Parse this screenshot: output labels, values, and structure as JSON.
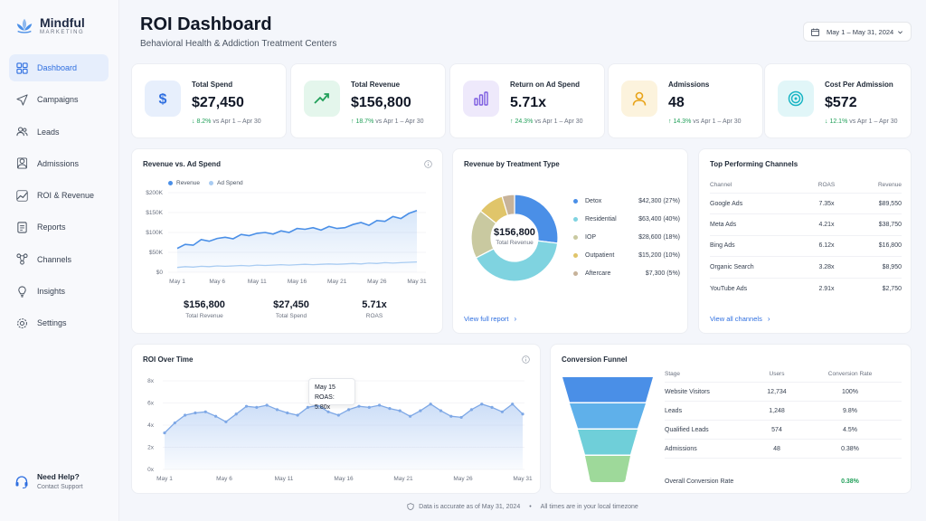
{
  "brand": {
    "name": "Mindful",
    "sub": "MARKETING"
  },
  "nav": [
    {
      "label": "Dashboard",
      "icon": "grid-icon",
      "active": true
    },
    {
      "label": "Campaigns",
      "icon": "send-icon"
    },
    {
      "label": "Leads",
      "icon": "users-icon"
    },
    {
      "label": "Admissions",
      "icon": "person-icon"
    },
    {
      "label": "ROI & Revenue",
      "icon": "trend-icon"
    },
    {
      "label": "Reports",
      "icon": "report-icon"
    },
    {
      "label": "Channels",
      "icon": "channels-icon"
    },
    {
      "label": "Insights",
      "icon": "bulb-icon"
    },
    {
      "label": "Settings",
      "icon": "gear-icon"
    }
  ],
  "help": {
    "title": "Need Help?",
    "sub": "Contact Support"
  },
  "header": {
    "title": "ROI Dashboard",
    "subtitle": "Behavioral Health & Addiction Treatment Centers",
    "date_range": "May 1 – May 31, 2024"
  },
  "kpis": [
    {
      "label": "Total Spend",
      "value": "$27,450",
      "delta": "8.2%",
      "compare": "vs Apr 1 – Apr 30",
      "icon": "dollar-icon",
      "color": "#2f6fe0"
    },
    {
      "label": "Total Revenue",
      "value": "$156,800",
      "delta": "18.7%",
      "compare": "vs Apr 1 – Apr 30",
      "icon": "trend-up-icon",
      "color": "#22a05a"
    },
    {
      "label": "Return on Ad Spend",
      "value": "5.71x",
      "delta": "24.3%",
      "compare": "vs Apr 1 – Apr 30",
      "icon": "bar-chart-icon",
      "color": "#7c5ce0"
    },
    {
      "label": "Admissions",
      "value": "48",
      "delta": "14.3%",
      "compare": "vs Apr 1 – Apr 30",
      "icon": "person-icon",
      "color": "#e8a317"
    },
    {
      "label": "Cost Per Admission",
      "value": "$572",
      "delta": "12.1%",
      "compare": "vs Apr 1 – Apr 30",
      "icon": "target-icon",
      "color": "#19b5c4"
    }
  ],
  "revenue_chart": {
    "title": "Revenue vs. Ad Spend",
    "legend": [
      "Revenue",
      "Ad Spend"
    ],
    "summary": [
      {
        "value": "$156,800",
        "label": "Total Revenue"
      },
      {
        "value": "$27,450",
        "label": "Total Spend"
      },
      {
        "value": "5.71x",
        "label": "ROAS"
      }
    ]
  },
  "treatment": {
    "title": "Revenue by Treatment Type",
    "center_value": "$156,800",
    "center_label": "Total Revenue",
    "link": "View full report"
  },
  "channels": {
    "title": "Top Performing Channels",
    "headers": [
      "Channel",
      "ROAS",
      "Revenue"
    ],
    "rows": [
      [
        "Google Ads",
        "7.35x",
        "$89,550"
      ],
      [
        "Meta Ads",
        "4.21x",
        "$38,750"
      ],
      [
        "Bing Ads",
        "6.12x",
        "$16,800"
      ],
      [
        "Organic Search",
        "3.28x",
        "$8,950"
      ],
      [
        "YouTube Ads",
        "2.91x",
        "$2,750"
      ]
    ],
    "link": "View all channels"
  },
  "roi_chart": {
    "title": "ROI Over Time",
    "tooltip_date": "May 15",
    "tooltip_value": "ROAS: 5.80x"
  },
  "funnel": {
    "title": "Conversion Funnel",
    "headers": [
      "Stage",
      "Users",
      "Conversion Rate"
    ],
    "rows": [
      [
        "Website Visitors",
        "12,734",
        "100%"
      ],
      [
        "Leads",
        "1,248",
        "9.8%"
      ],
      [
        "Qualified Leads",
        "574",
        "4.5%"
      ],
      [
        "Admissions",
        "48",
        "0.38%"
      ]
    ],
    "overall_label": "Overall Conversion Rate",
    "overall_value": "0.38%"
  },
  "footer": {
    "left": "Data is accurate as of May 31, 2024",
    "right": "All times are in your local timezone"
  },
  "chart_data": [
    {
      "type": "line",
      "title": "Revenue vs. Ad Spend",
      "x_ticks": [
        "May 1",
        "May 6",
        "May 11",
        "May 16",
        "May 21",
        "May 26",
        "May 31"
      ],
      "y_ticks": [
        "$0",
        "$50K",
        "$100K",
        "$150K",
        "$200K"
      ],
      "ylim": [
        0,
        200000
      ],
      "series": [
        {
          "name": "Revenue",
          "color": "#4a8fe7",
          "values": [
            60000,
            70000,
            68000,
            82000,
            78000,
            85000,
            88000,
            84000,
            95000,
            92000,
            98000,
            100000,
            96000,
            104000,
            100000,
            110000,
            108000,
            112000,
            106000,
            115000,
            110000,
            112000,
            120000,
            125000,
            118000,
            130000,
            128000,
            140000,
            135000,
            148000,
            155000
          ]
        },
        {
          "name": "Ad Spend",
          "color": "#a9ccf2",
          "values": [
            12000,
            14000,
            13000,
            15000,
            14000,
            16000,
            15000,
            16000,
            17000,
            16000,
            18000,
            17000,
            18000,
            19000,
            18000,
            19000,
            20000,
            19000,
            20000,
            21000,
            20000,
            21000,
            22000,
            21000,
            23000,
            22000,
            24000,
            23000,
            24000,
            25000,
            26000
          ]
        }
      ]
    },
    {
      "type": "pie",
      "title": "Revenue by Treatment Type",
      "slices": [
        {
          "label": "Detox",
          "value": 42300,
          "text": "$42,300 (27%)",
          "color": "#4a8fe7"
        },
        {
          "label": "Residential",
          "value": 63400,
          "text": "$63,400 (40%)",
          "color": "#7fd3e0"
        },
        {
          "label": "IOP",
          "value": 28600,
          "text": "$28,600 (18%)",
          "color": "#c9c9a0"
        },
        {
          "label": "Outpatient",
          "value": 15200,
          "text": "$15,200 (10%)",
          "color": "#e0c56a"
        },
        {
          "label": "Aftercare",
          "value": 7300,
          "text": "$7,300 (5%)",
          "color": "#c7b39a"
        }
      ]
    },
    {
      "type": "area",
      "title": "ROI Over Time",
      "x_ticks": [
        "May 1",
        "May 6",
        "May 11",
        "May 16",
        "May 21",
        "May 26",
        "May 31"
      ],
      "y_ticks": [
        "0x",
        "2x",
        "4x",
        "6x",
        "8x"
      ],
      "ylim": [
        0,
        8
      ],
      "values": [
        3.3,
        4.2,
        4.9,
        5.1,
        5.2,
        4.8,
        4.3,
        5.0,
        5.7,
        5.6,
        5.8,
        5.4,
        5.1,
        4.9,
        5.6,
        5.8,
        5.2,
        4.9,
        5.4,
        5.7,
        5.6,
        5.8,
        5.5,
        5.3,
        4.8,
        5.3,
        5.9,
        5.3,
        4.8,
        4.7,
        5.4,
        5.9,
        5.6,
        5.2,
        5.9,
        5.0
      ]
    },
    {
      "type": "bar",
      "title": "Conversion Funnel",
      "categories": [
        "Website Visitors",
        "Leads",
        "Qualified Leads",
        "Admissions"
      ],
      "values": [
        12734,
        1248,
        574,
        48
      ]
    }
  ]
}
